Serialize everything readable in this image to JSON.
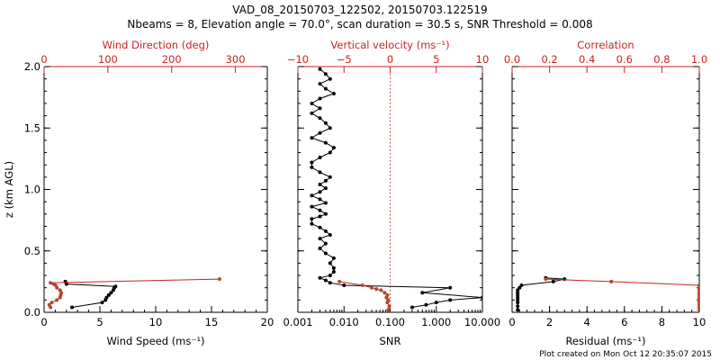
{
  "figure": {
    "title": "VAD_08_20150703_122502, 20150703.122519",
    "subtitle": "Nbeams = 8, Elevation angle = 70.0°, scan duration = 30.5 s, SNR Threshold = 0.008",
    "footer": "Plot created on Mon Oct 12 20:35:07 2015",
    "colors": {
      "axes": "#000000",
      "secondary": "#cc2222",
      "secondary_marker": "#b04a2a",
      "primary": "#000000"
    }
  },
  "chart_data": [
    {
      "type": "line",
      "ylabel": "z (km AGL)",
      "ylim": [
        0,
        2.0
      ],
      "yticks": [
        "0.0",
        "0.5",
        "1.0",
        "1.5",
        "2.0"
      ],
      "bottom_axis": {
        "label": "Wind Speed (ms⁻¹)",
        "range": [
          0,
          20
        ],
        "ticks": [
          "0",
          "5",
          "10",
          "15",
          "20"
        ]
      },
      "top_axis": {
        "label": "Wind Direction (deg)",
        "range": [
          0,
          350
        ],
        "ticks": [
          "0",
          "100",
          "200",
          "300"
        ]
      },
      "series": [
        {
          "axis": "bottom",
          "points": [
            [
              2.5,
              0.04
            ],
            [
              5.2,
              0.08
            ],
            [
              5.5,
              0.1
            ],
            [
              5.6,
              0.12
            ],
            [
              5.8,
              0.14
            ],
            [
              6.0,
              0.16
            ],
            [
              6.2,
              0.18
            ],
            [
              6.3,
              0.2
            ],
            [
              6.4,
              0.21
            ],
            [
              2.0,
              0.23
            ],
            [
              1.9,
              0.25
            ]
          ]
        },
        {
          "axis": "top",
          "points": [
            [
              10,
              0.04
            ],
            [
              8,
              0.06
            ],
            [
              12,
              0.08
            ],
            [
              20,
              0.1
            ],
            [
              25,
              0.12
            ],
            [
              26,
              0.14
            ],
            [
              27,
              0.16
            ],
            [
              25,
              0.18
            ],
            [
              20,
              0.2
            ],
            [
              18,
              0.22
            ],
            [
              15,
              0.23
            ],
            [
              10,
              0.24
            ],
            [
              275,
              0.27
            ]
          ]
        }
      ]
    },
    {
      "type": "line",
      "xscale": "log",
      "ylim": [
        0,
        2.0
      ],
      "bottom_axis": {
        "label": "SNR",
        "range": [
          0.001,
          10
        ],
        "ticks": [
          "0.001",
          "0.010",
          "0.100",
          "1.000",
          "10.000"
        ]
      },
      "top_axis": {
        "label": "Vertical velocity (ms⁻¹)",
        "range": [
          -10,
          10
        ],
        "ticks": [
          "−10",
          "−5",
          "0",
          "5",
          "10"
        ],
        "reference_line_at": 0
      },
      "series": [
        {
          "axis": "bottom",
          "points": [
            [
              0.3,
              0.04
            ],
            [
              0.6,
              0.06
            ],
            [
              1.0,
              0.08
            ],
            [
              2.0,
              0.1
            ],
            [
              10,
              0.12
            ],
            [
              0.5,
              0.16
            ],
            [
              2.0,
              0.2
            ],
            [
              0.01,
              0.22
            ],
            [
              0.005,
              0.24
            ],
            [
              0.004,
              0.26
            ],
            [
              0.003,
              0.28
            ],
            [
              0.005,
              0.3
            ],
            [
              0.006,
              0.33
            ],
            [
              0.006,
              0.36
            ],
            [
              0.005,
              0.4
            ],
            [
              0.006,
              0.44
            ],
            [
              0.004,
              0.48
            ],
            [
              0.003,
              0.52
            ],
            [
              0.004,
              0.56
            ],
            [
              0.003,
              0.6
            ],
            [
              0.005,
              0.63
            ],
            [
              0.004,
              0.66
            ],
            [
              0.003,
              0.69
            ],
            [
              0.002,
              0.72
            ],
            [
              0.002,
              0.76
            ],
            [
              0.003,
              0.78
            ],
            [
              0.004,
              0.8
            ],
            [
              0.003,
              0.83
            ],
            [
              0.002,
              0.86
            ],
            [
              0.004,
              0.89
            ],
            [
              0.003,
              0.92
            ],
            [
              0.002,
              0.95
            ],
            [
              0.003,
              0.98
            ],
            [
              0.004,
              1.01
            ],
            [
              0.003,
              1.04
            ],
            [
              0.004,
              1.07
            ],
            [
              0.005,
              1.1
            ],
            [
              0.003,
              1.14
            ],
            [
              0.002,
              1.18
            ],
            [
              0.002,
              1.22
            ],
            [
              0.003,
              1.26
            ],
            [
              0.005,
              1.3
            ],
            [
              0.006,
              1.34
            ],
            [
              0.004,
              1.38
            ],
            [
              0.002,
              1.42
            ],
            [
              0.003,
              1.46
            ],
            [
              0.005,
              1.5
            ],
            [
              0.004,
              1.54
            ],
            [
              0.003,
              1.58
            ],
            [
              0.002,
              1.62
            ],
            [
              0.003,
              1.66
            ],
            [
              0.002,
              1.7
            ],
            [
              0.003,
              1.74
            ],
            [
              0.006,
              1.78
            ],
            [
              0.004,
              1.82
            ],
            [
              0.003,
              1.86
            ],
            [
              0.005,
              1.9
            ],
            [
              0.004,
              1.94
            ],
            [
              0.003,
              1.98
            ]
          ]
        },
        {
          "axis": "top",
          "points": [
            [
              -0.2,
              0.02
            ],
            [
              -0.1,
              0.05
            ],
            [
              -0.3,
              0.08
            ],
            [
              -0.2,
              0.1
            ],
            [
              -0.4,
              0.12
            ],
            [
              -0.3,
              0.14
            ],
            [
              -0.6,
              0.16
            ],
            [
              -1.0,
              0.18
            ],
            [
              -1.5,
              0.19
            ],
            [
              -2.0,
              0.2
            ],
            [
              -3.0,
              0.22
            ],
            [
              -5.5,
              0.25
            ]
          ]
        }
      ]
    },
    {
      "type": "line",
      "ylim": [
        0,
        2.0
      ],
      "bottom_axis": {
        "label": "Residual (ms⁻¹)",
        "range": [
          0,
          10
        ],
        "ticks": [
          "0",
          "2",
          "4",
          "6",
          "8",
          "10"
        ]
      },
      "top_axis": {
        "label": "Correlation",
        "range": [
          0,
          1.0
        ],
        "ticks": [
          "0.0",
          "0.2",
          "0.4",
          "0.6",
          "0.8",
          "1.0"
        ]
      },
      "series": [
        {
          "axis": "bottom",
          "points": [
            [
              0.3,
              0.02
            ],
            [
              0.3,
              0.05
            ],
            [
              0.3,
              0.08
            ],
            [
              0.3,
              0.1
            ],
            [
              0.3,
              0.12
            ],
            [
              0.3,
              0.14
            ],
            [
              0.3,
              0.16
            ],
            [
              0.3,
              0.18
            ],
            [
              0.4,
              0.2
            ],
            [
              0.5,
              0.22
            ],
            [
              2.2,
              0.25
            ],
            [
              2.8,
              0.27
            ],
            [
              1.8,
              0.28
            ]
          ]
        },
        {
          "axis": "top",
          "points": [
            [
              1.0,
              0.02
            ],
            [
              1.0,
              0.04
            ],
            [
              1.0,
              0.06
            ],
            [
              1.0,
              0.08
            ],
            [
              1.0,
              0.1
            ],
            [
              1.0,
              0.12
            ],
            [
              1.0,
              0.14
            ],
            [
              1.0,
              0.16
            ],
            [
              1.0,
              0.18
            ],
            [
              1.0,
              0.2
            ],
            [
              1.0,
              0.22
            ],
            [
              0.53,
              0.25
            ],
            [
              0.18,
              0.27
            ]
          ]
        }
      ]
    }
  ]
}
